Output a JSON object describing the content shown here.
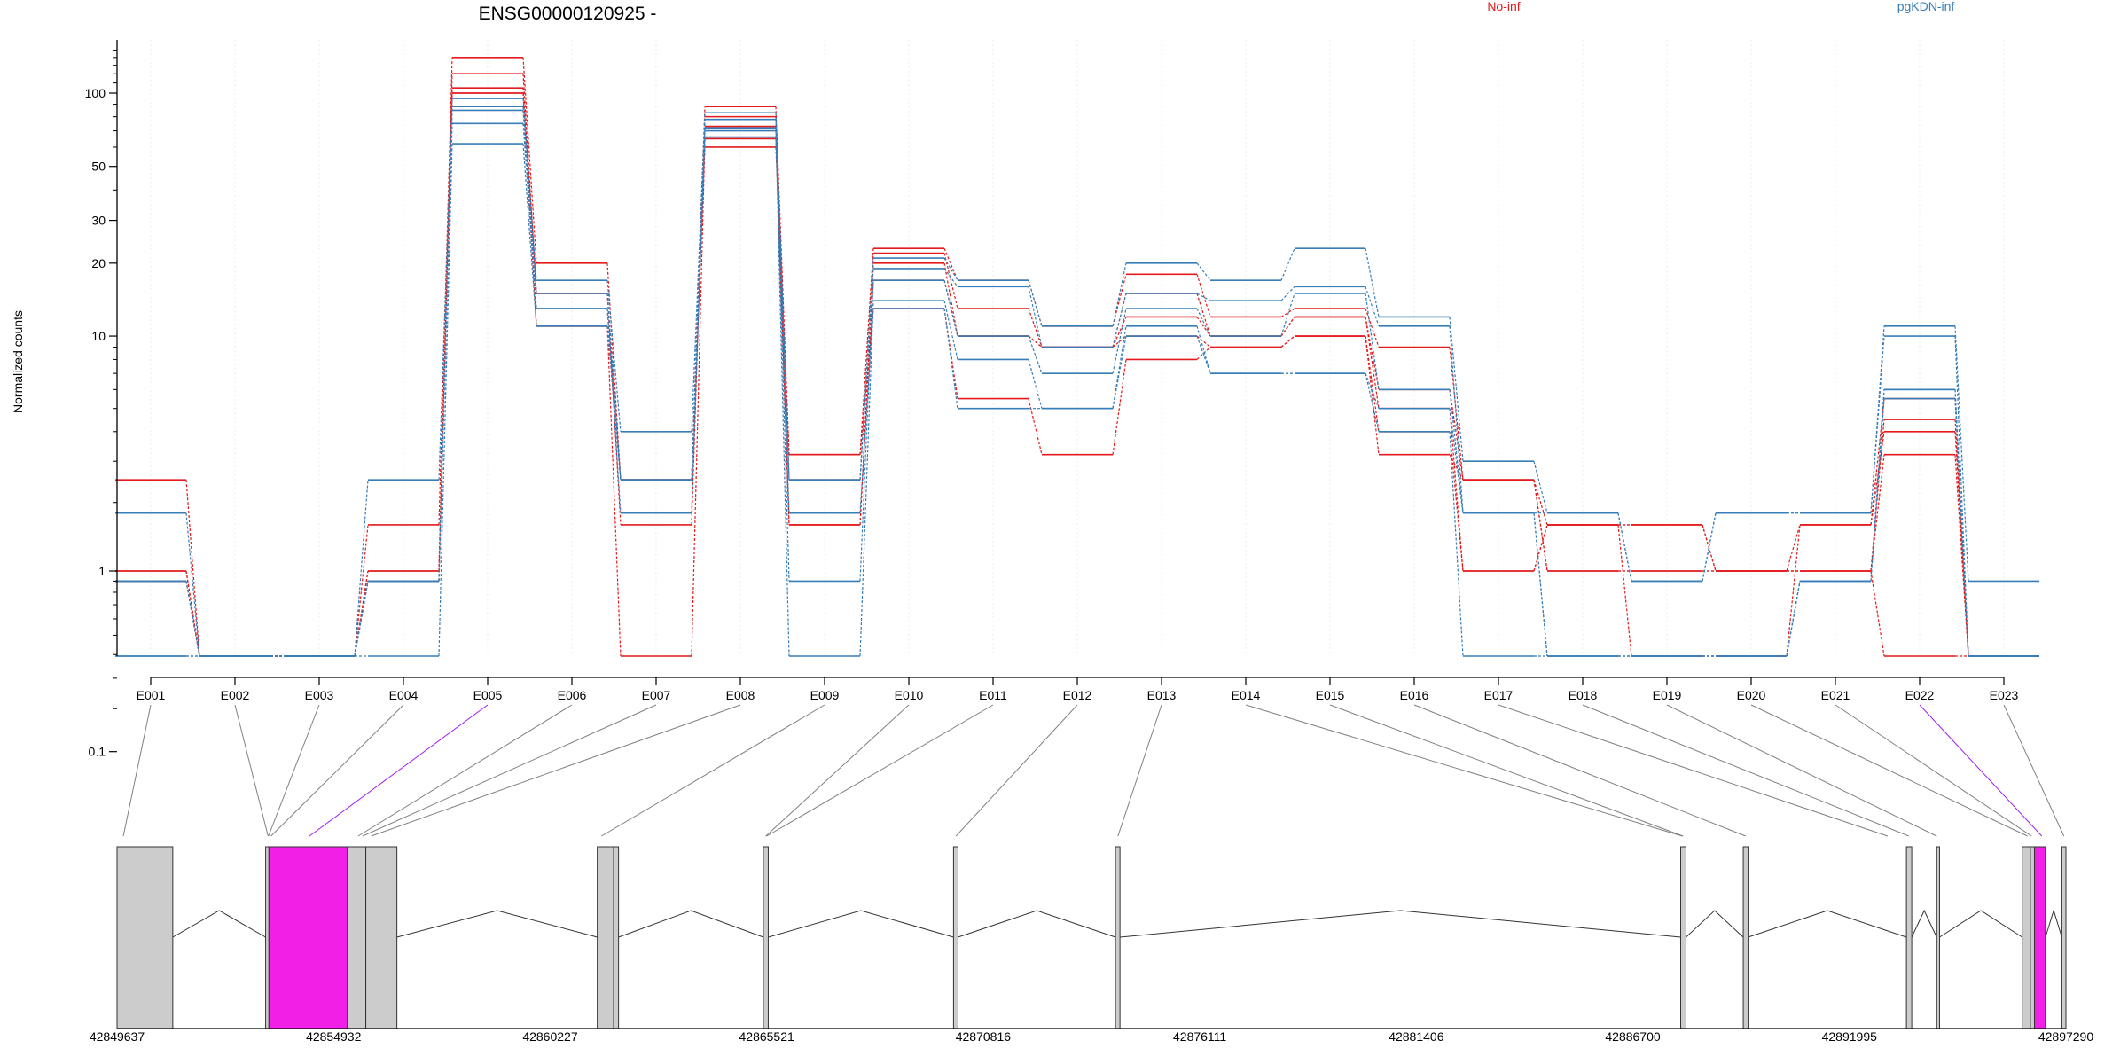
{
  "title": "ENSG00000120925 -",
  "legend": [
    {
      "name": "No-inf",
      "color": "#e41a1c"
    },
    {
      "name": "pgKDN-inf",
      "color": "#377eb8"
    }
  ],
  "colors": {
    "highlight": "#f21fe6",
    "exon_fill": "#cccccc",
    "axis": "#000000",
    "connector": "#808080"
  },
  "chart_data": {
    "type": "line",
    "title": "ENSG00000120925 -",
    "ylabel": "Normalized counts",
    "yscale": "log(x+0.1)",
    "yticks": [
      0.1,
      1,
      10,
      20,
      30,
      50,
      100
    ],
    "ylim": [
      0.1,
      150
    ],
    "categories": [
      "E001",
      "E002",
      "E003",
      "E004",
      "E005",
      "E006",
      "E007",
      "E008",
      "E009",
      "E010",
      "E011",
      "E012",
      "E013",
      "E014",
      "E015",
      "E016",
      "E017",
      "E018",
      "E019",
      "E020",
      "E021",
      "E022",
      "E023"
    ],
    "series": [
      {
        "name": "No-inf",
        "values": [
          2.5,
          0,
          0,
          1.6,
          140,
          20,
          2.5,
          88,
          3.2,
          23,
          17,
          11,
          18,
          12,
          13,
          9,
          2.5,
          1.6,
          1.6,
          1.0,
          1.6,
          5.5,
          0
        ]
      },
      {
        "name": "No-inf",
        "values": [
          1.0,
          0,
          0,
          1.0,
          120,
          15,
          1.6,
          80,
          2.5,
          22,
          13,
          9,
          15,
          10,
          12,
          6,
          2.5,
          1.0,
          1.0,
          1.0,
          1.0,
          4.5,
          0
        ]
      },
      {
        "name": "No-inf",
        "values": [
          1.0,
          0,
          0,
          1.0,
          105,
          15,
          2.5,
          73,
          1.6,
          20,
          10,
          9,
          12,
          10,
          12,
          5,
          1.0,
          1.6,
          0,
          0,
          1.6,
          4,
          0
        ]
      },
      {
        "name": "No-inf",
        "values": [
          0.9,
          0,
          0,
          0.9,
          100,
          11,
          0,
          65,
          1.6,
          17,
          10,
          9,
          10,
          9,
          10,
          4,
          1.0,
          1.6,
          1.6,
          1.0,
          1.0,
          3.2,
          0
        ]
      },
      {
        "name": "No-inf",
        "values": [
          0.9,
          0,
          0,
          0.9,
          100,
          11,
          2.5,
          60,
          3.2,
          13,
          5.5,
          3.2,
          8,
          9,
          10,
          3.2,
          2.5,
          1.0,
          1.0,
          1.0,
          1.0,
          0,
          0
        ]
      },
      {
        "name": "pgKDN-inf",
        "values": [
          1.8,
          0,
          0,
          2.5,
          95,
          17,
          4,
          83,
          2.5,
          21,
          17,
          11,
          20,
          17,
          23,
          12,
          3,
          1.8,
          0.9,
          1.8,
          1.8,
          11,
          0.9
        ]
      },
      {
        "name": "pgKDN-inf",
        "values": [
          0.9,
          0,
          0,
          0.9,
          88,
          15,
          2.5,
          78,
          2.5,
          19,
          16,
          9,
          15,
          14,
          16,
          11,
          1.8,
          1.8,
          0.9,
          1.8,
          1.8,
          10,
          0
        ]
      },
      {
        "name": "pgKDN-inf",
        "values": [
          0.9,
          0,
          0,
          0.9,
          85,
          13,
          1.8,
          72,
          0.9,
          17,
          10,
          7,
          13,
          10,
          15,
          6,
          1.8,
          0,
          0,
          0,
          0.9,
          6,
          0
        ]
      },
      {
        "name": "pgKDN-inf",
        "values": [
          0,
          0,
          0,
          0.9,
          75,
          13,
          2.5,
          70,
          0,
          14,
          8,
          5,
          11,
          7,
          7,
          5,
          1.8,
          0,
          0,
          0,
          0.9,
          6,
          0
        ]
      },
      {
        "name": "pgKDN-inf",
        "values": [
          0,
          0,
          0,
          0,
          62,
          11,
          2.5,
          66,
          1.8,
          13,
          5,
          5,
          10,
          7,
          7,
          4,
          0,
          0,
          0,
          0,
          0.9,
          5.5,
          0
        ]
      }
    ],
    "gene_model": {
      "coordinate_ticks": [
        "42849637",
        "42854932",
        "42860227",
        "42865521",
        "42870816",
        "42876111",
        "42881406",
        "42886700",
        "42891995",
        "42897290"
      ],
      "exons": [
        {
          "start": 42849637,
          "end": 42851000,
          "highlight": false
        },
        {
          "start": 42853270,
          "end": 42853350,
          "highlight": false
        },
        {
          "start": 42853350,
          "end": 42855270,
          "highlight": true
        },
        {
          "start": 42855270,
          "end": 42855720,
          "highlight": false
        },
        {
          "start": 42855720,
          "end": 42856480,
          "highlight": false
        },
        {
          "start": 42861380,
          "end": 42861780,
          "highlight": false
        },
        {
          "start": 42861780,
          "end": 42861900,
          "highlight": false
        },
        {
          "start": 42865440,
          "end": 42865560,
          "highlight": false
        },
        {
          "start": 42870090,
          "end": 42870200,
          "highlight": false
        },
        {
          "start": 42874050,
          "end": 42874160,
          "highlight": false
        },
        {
          "start": 42887870,
          "end": 42888000,
          "highlight": false
        },
        {
          "start": 42889400,
          "end": 42889520,
          "highlight": false
        },
        {
          "start": 42893390,
          "end": 42893520,
          "highlight": false
        },
        {
          "start": 42894130,
          "end": 42894200,
          "highlight": false
        },
        {
          "start": 42896220,
          "end": 42896420,
          "highlight": false
        },
        {
          "start": 42896420,
          "end": 42896520,
          "highlight": false
        },
        {
          "start": 42896520,
          "end": 42896790,
          "highlight": true
        },
        {
          "start": 42897190,
          "end": 42897290,
          "highlight": false
        }
      ],
      "exon_bin_positions": [
        42849790,
        42853330,
        42853340,
        42853400,
        42854340,
        42855530,
        42855640,
        42855850,
        42861480,
        42865500,
        42865520,
        42870150,
        42874110,
        42887910,
        42887930,
        42889460,
        42892930,
        42893450,
        42894130,
        42896350,
        42896450,
        42896700,
        42897240
      ],
      "highlight_bins": [
        "E005",
        "E022"
      ]
    }
  }
}
